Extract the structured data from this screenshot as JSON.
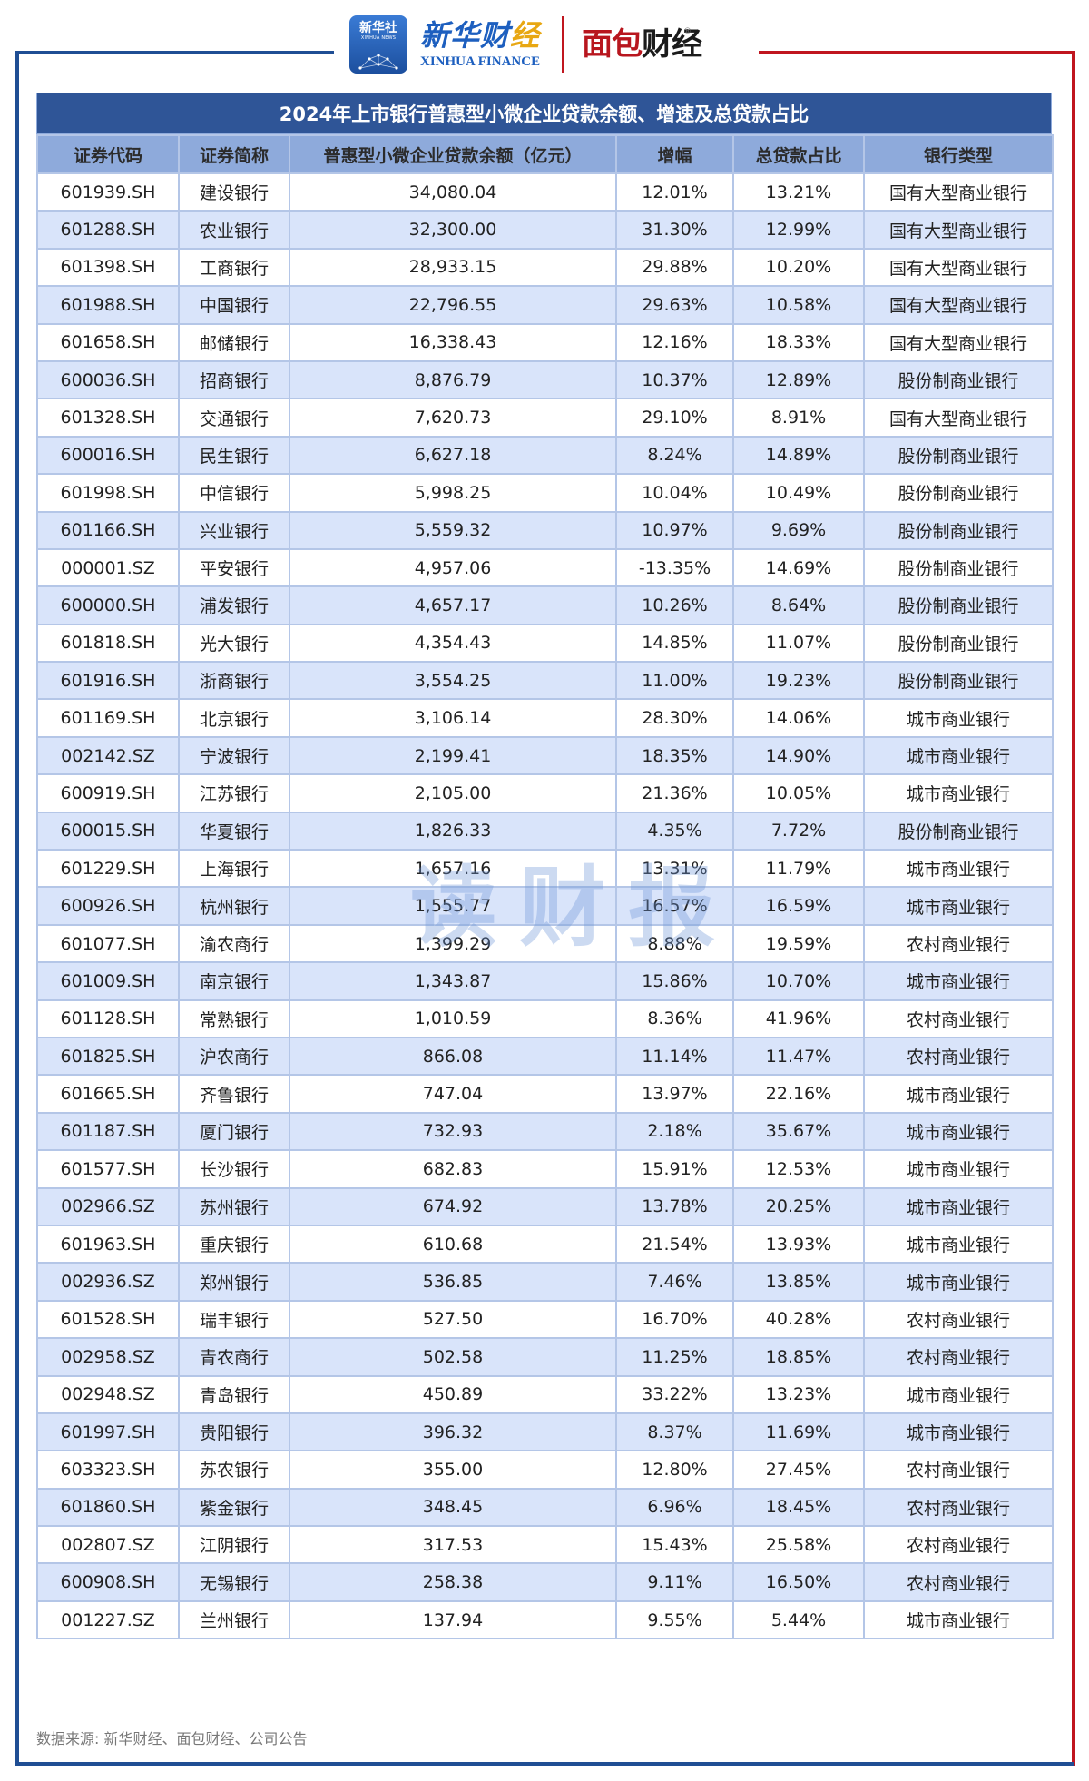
{
  "header": {
    "logo_xinhua_icon_big": "新华社",
    "logo_xinhua_icon_small": "XINHUA NEWS",
    "logo_xinhua_cn_part1": "新华财",
    "logo_xinhua_cn_part2": "经",
    "logo_xinhua_en": "XINHUA FINANCE",
    "logo_mianbao_red": "面包",
    "logo_mianbao_dark": "财经",
    "logo_mianbao_reg": "®"
  },
  "table": {
    "title": "2024年上市银行普惠型小微企业贷款余额、增速及总贷款占比",
    "columns": [
      "证券代码",
      "证券简称",
      "普惠型小微企业贷款余额（亿元）",
      "增幅",
      "总贷款占比",
      "银行类型"
    ],
    "rows": [
      [
        "601939.SH",
        "建设银行",
        "34,080.04",
        "12.01%",
        "13.21%",
        "国有大型商业银行"
      ],
      [
        "601288.SH",
        "农业银行",
        "32,300.00",
        "31.30%",
        "12.99%",
        "国有大型商业银行"
      ],
      [
        "601398.SH",
        "工商银行",
        "28,933.15",
        "29.88%",
        "10.20%",
        "国有大型商业银行"
      ],
      [
        "601988.SH",
        "中国银行",
        "22,796.55",
        "29.63%",
        "10.58%",
        "国有大型商业银行"
      ],
      [
        "601658.SH",
        "邮储银行",
        "16,338.43",
        "12.16%",
        "18.33%",
        "国有大型商业银行"
      ],
      [
        "600036.SH",
        "招商银行",
        "8,876.79",
        "10.37%",
        "12.89%",
        "股份制商业银行"
      ],
      [
        "601328.SH",
        "交通银行",
        "7,620.73",
        "29.10%",
        "8.91%",
        "国有大型商业银行"
      ],
      [
        "600016.SH",
        "民生银行",
        "6,627.18",
        "8.24%",
        "14.89%",
        "股份制商业银行"
      ],
      [
        "601998.SH",
        "中信银行",
        "5,998.25",
        "10.04%",
        "10.49%",
        "股份制商业银行"
      ],
      [
        "601166.SH",
        "兴业银行",
        "5,559.32",
        "10.97%",
        "9.69%",
        "股份制商业银行"
      ],
      [
        "000001.SZ",
        "平安银行",
        "4,957.06",
        "-13.35%",
        "14.69%",
        "股份制商业银行"
      ],
      [
        "600000.SH",
        "浦发银行",
        "4,657.17",
        "10.26%",
        "8.64%",
        "股份制商业银行"
      ],
      [
        "601818.SH",
        "光大银行",
        "4,354.43",
        "14.85%",
        "11.07%",
        "股份制商业银行"
      ],
      [
        "601916.SH",
        "浙商银行",
        "3,554.25",
        "11.00%",
        "19.23%",
        "股份制商业银行"
      ],
      [
        "601169.SH",
        "北京银行",
        "3,106.14",
        "28.30%",
        "14.06%",
        "城市商业银行"
      ],
      [
        "002142.SZ",
        "宁波银行",
        "2,199.41",
        "18.35%",
        "14.90%",
        "城市商业银行"
      ],
      [
        "600919.SH",
        "江苏银行",
        "2,105.00",
        "21.36%",
        "10.05%",
        "城市商业银行"
      ],
      [
        "600015.SH",
        "华夏银行",
        "1,826.33",
        "4.35%",
        "7.72%",
        "股份制商业银行"
      ],
      [
        "601229.SH",
        "上海银行",
        "1,657.16",
        "13.31%",
        "11.79%",
        "城市商业银行"
      ],
      [
        "600926.SH",
        "杭州银行",
        "1,555.77",
        "16.57%",
        "16.59%",
        "城市商业银行"
      ],
      [
        "601077.SH",
        "渝农商行",
        "1,399.29",
        "8.88%",
        "19.59%",
        "农村商业银行"
      ],
      [
        "601009.SH",
        "南京银行",
        "1,343.87",
        "15.86%",
        "10.70%",
        "城市商业银行"
      ],
      [
        "601128.SH",
        "常熟银行",
        "1,010.59",
        "8.36%",
        "41.96%",
        "农村商业银行"
      ],
      [
        "601825.SH",
        "沪农商行",
        "866.08",
        "11.14%",
        "11.47%",
        "农村商业银行"
      ],
      [
        "601665.SH",
        "齐鲁银行",
        "747.04",
        "13.97%",
        "22.16%",
        "城市商业银行"
      ],
      [
        "601187.SH",
        "厦门银行",
        "732.93",
        "2.18%",
        "35.67%",
        "城市商业银行"
      ],
      [
        "601577.SH",
        "长沙银行",
        "682.83",
        "15.91%",
        "12.53%",
        "城市商业银行"
      ],
      [
        "002966.SZ",
        "苏州银行",
        "674.92",
        "13.78%",
        "20.25%",
        "城市商业银行"
      ],
      [
        "601963.SH",
        "重庆银行",
        "610.68",
        "21.54%",
        "13.93%",
        "城市商业银行"
      ],
      [
        "002936.SZ",
        "郑州银行",
        "536.85",
        "7.46%",
        "13.85%",
        "城市商业银行"
      ],
      [
        "601528.SH",
        "瑞丰银行",
        "527.50",
        "16.70%",
        "40.28%",
        "农村商业银行"
      ],
      [
        "002958.SZ",
        "青农商行",
        "502.58",
        "11.25%",
        "18.85%",
        "农村商业银行"
      ],
      [
        "002948.SZ",
        "青岛银行",
        "450.89",
        "33.22%",
        "13.23%",
        "城市商业银行"
      ],
      [
        "601997.SH",
        "贵阳银行",
        "396.32",
        "8.37%",
        "11.69%",
        "城市商业银行"
      ],
      [
        "603323.SH",
        "苏农银行",
        "355.00",
        "12.80%",
        "27.45%",
        "农村商业银行"
      ],
      [
        "601860.SH",
        "紫金银行",
        "348.45",
        "6.96%",
        "18.45%",
        "农村商业银行"
      ],
      [
        "002807.SZ",
        "江阴银行",
        "317.53",
        "15.43%",
        "25.58%",
        "农村商业银行"
      ],
      [
        "600908.SH",
        "无锡银行",
        "258.38",
        "9.11%",
        "16.50%",
        "农村商业银行"
      ],
      [
        "001227.SZ",
        "兰州银行",
        "137.94",
        "9.55%",
        "5.44%",
        "城市商业银行"
      ]
    ]
  },
  "footnote": "数据来源: 新华财经、面包财经、公司公告",
  "watermark": "读财报",
  "colors": {
    "title_bar": "#2f5597",
    "header_row": "#8eaadb",
    "alt_row": "#d9e4fa",
    "border": "#b4c6e7",
    "frame_blue": "#1f4e94",
    "frame_red": "#c0161f"
  }
}
